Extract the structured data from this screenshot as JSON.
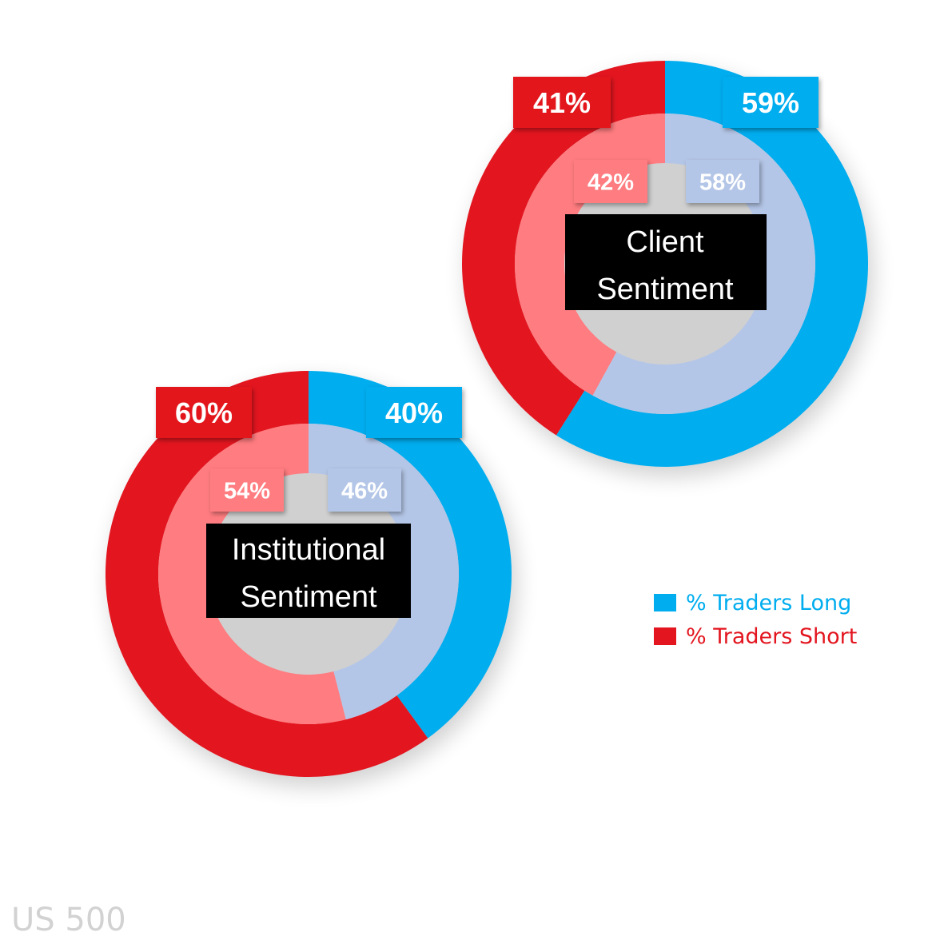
{
  "colors": {
    "long_outer": "#00adef",
    "long_inner": "#b4c6e7",
    "short_outer": "#e3151f",
    "short_inner": "#ff7c80",
    "center_label_bg": "#000000",
    "center_label_text": "#ffffff",
    "footer": "#d2d2d2"
  },
  "legend": {
    "long_label": "% Traders Long",
    "short_label": "% Traders Short"
  },
  "footer": {
    "symbol": "US 500"
  },
  "chart_data": [
    {
      "type": "pie",
      "title": "Client Sentiment",
      "rings": [
        {
          "ring": "outer",
          "values": [
            {
              "name": "long",
              "value": 59,
              "label": "59%"
            },
            {
              "name": "short",
              "value": 41,
              "label": "41%"
            }
          ]
        },
        {
          "ring": "inner",
          "values": [
            {
              "name": "long",
              "value": 58,
              "label": "58%"
            },
            {
              "name": "short",
              "value": 42,
              "label": "42%"
            }
          ]
        }
      ]
    },
    {
      "type": "pie",
      "title": "Institutional Sentiment",
      "rings": [
        {
          "ring": "outer",
          "values": [
            {
              "name": "long",
              "value": 40,
              "label": "40%"
            },
            {
              "name": "short",
              "value": 60,
              "label": "60%"
            }
          ]
        },
        {
          "ring": "inner",
          "values": [
            {
              "name": "long",
              "value": 46,
              "label": "46%"
            },
            {
              "name": "short",
              "value": 54,
              "label": "54%"
            }
          ]
        }
      ]
    }
  ]
}
